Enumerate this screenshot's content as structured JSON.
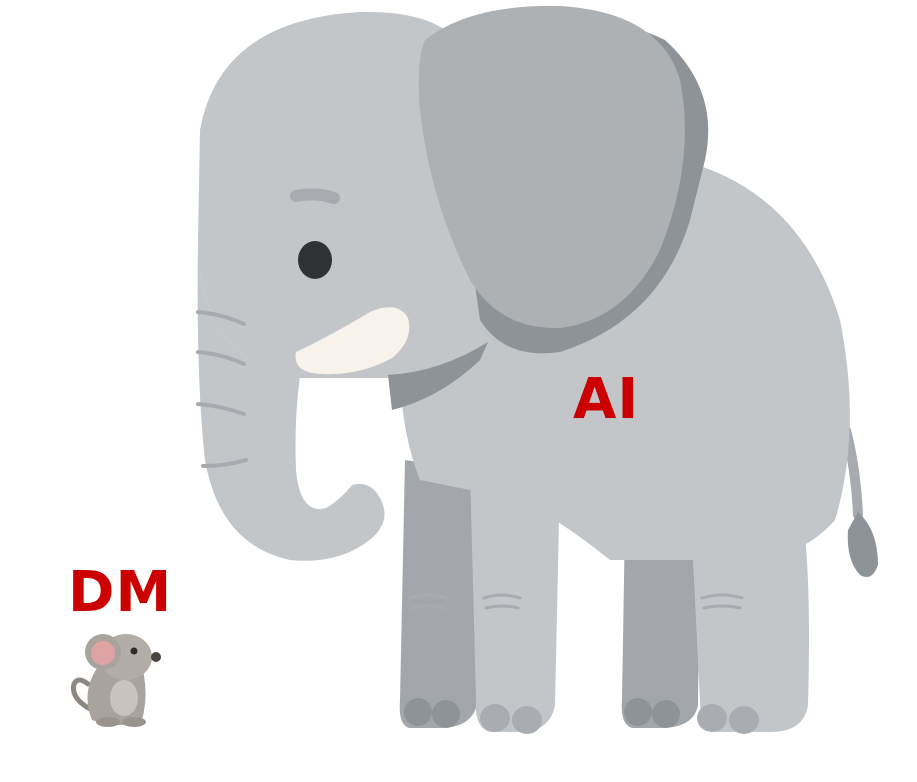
{
  "labels": {
    "elephant": "AI",
    "mouse": "DM"
  },
  "colors": {
    "label": "#cc0000",
    "elephant_body": "#c2c6c9",
    "elephant_ear": "#adb1b4",
    "elephant_shadow": "#8e9397",
    "elephant_dark_leg": "#a3a7ab",
    "tusk": "#f7f3ea",
    "eye": "#2f3336",
    "mouse_body": "#a9a39e",
    "mouse_ear_inner": "#e0a3a3"
  },
  "icons": {
    "elephant": "elephant-illustration",
    "mouse": "mouse-illustration"
  }
}
